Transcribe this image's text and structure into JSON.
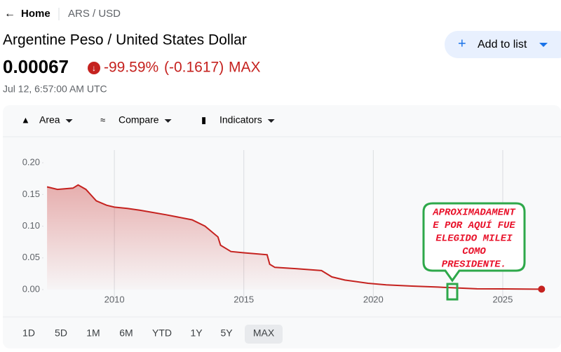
{
  "nav": {
    "back": "Home",
    "symbol": "ARS / USD"
  },
  "quote": {
    "name": "Argentine Peso / United States Dollar",
    "price": "0.00067",
    "change_percent": "-99.59%",
    "change": "(-0.1617)",
    "period": "MAX",
    "timestamp": "Jul 12, 6:57:00 AM UTC"
  },
  "add_button": "Add to list",
  "toolbar": [
    "Area",
    "Compare",
    "Indicators"
  ],
  "ranges": [
    "1D",
    "5D",
    "1M",
    "6M",
    "YTD",
    "1Y",
    "5Y",
    "MAX"
  ],
  "annotation": [
    "APROXIMADAMENT",
    "E POR AQUÍ FUE",
    "ELEGIDO MILEI",
    "COMO",
    "PRESIDENTE."
  ],
  "chart_data": {
    "type": "area",
    "color": "#c5221f",
    "x": [
      2007.4,
      2007.8,
      2008.4,
      2008.6,
      2008.9,
      2009.3,
      2009.7,
      2010.0,
      2010.5,
      2011.0,
      2012.0,
      2013.0,
      2013.5,
      2014.0,
      2014.1,
      2014.5,
      2015.0,
      2015.9,
      2016.0,
      2016.2,
      2017.0,
      2018.0,
      2018.4,
      2018.9,
      2019.8,
      2020.5,
      2021.5,
      2022.5,
      2023.0,
      2024.0,
      2025.0,
      2026.5
    ],
    "values": [
      0.162,
      0.158,
      0.16,
      0.165,
      0.158,
      0.14,
      0.133,
      0.13,
      0.128,
      0.125,
      0.118,
      0.11,
      0.1,
      0.083,
      0.07,
      0.06,
      0.058,
      0.055,
      0.04,
      0.035,
      0.033,
      0.03,
      0.02,
      0.015,
      0.01,
      0.0075,
      0.0055,
      0.004,
      0.003,
      0.0012,
      0.0011,
      0.00067
    ],
    "xlim": [
      2007.37,
      2026.6
    ],
    "ylim": [
      0,
      0.22
    ],
    "xticks": [
      2010,
      2015,
      2020,
      2025
    ],
    "yticks": [
      {
        "value": 0,
        "label": "0.00"
      },
      {
        "value": 0.05,
        "label": "0.05"
      },
      {
        "value": 0.1,
        "label": "0.10"
      },
      {
        "value": 0.15,
        "label": "0.15"
      },
      {
        "value": 0.2,
        "label": "0.20"
      }
    ],
    "grid": true
  }
}
